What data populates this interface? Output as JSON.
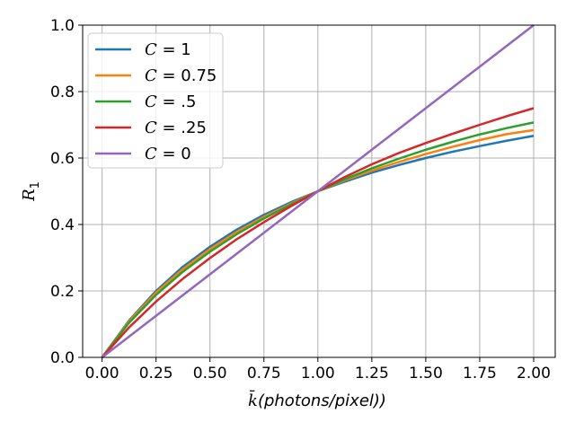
{
  "chart_data": {
    "type": "line",
    "title": "",
    "xlabel": "k̄(photons/pixel))",
    "ylabel": "R1",
    "xlim": [
      -0.09,
      2.1
    ],
    "ylim": [
      0.0,
      1.0
    ],
    "grid": true,
    "legend_position": "top-left",
    "x_ticks": [
      0.0,
      0.25,
      0.5,
      0.75,
      1.0,
      1.25,
      1.5,
      1.75,
      2.0
    ],
    "x_tick_labels": [
      "0.00",
      "0.25",
      "0.50",
      "0.75",
      "1.00",
      "1.25",
      "1.50",
      "1.75",
      "2.00"
    ],
    "y_ticks": [
      0.0,
      0.2,
      0.4,
      0.6,
      0.8,
      1.0
    ],
    "y_tick_labels": [
      "0.0",
      "0.2",
      "0.4",
      "0.6",
      "0.8",
      "1.0"
    ],
    "x": [
      0.0,
      0.125,
      0.25,
      0.375,
      0.5,
      0.625,
      0.75,
      0.875,
      1.0,
      1.125,
      1.25,
      1.375,
      1.5,
      1.625,
      1.75,
      1.875,
      2.0
    ],
    "series": [
      {
        "name": "C = 1",
        "label_var": "C",
        "label_val": "1",
        "color": "#1f77b4",
        "values": [
          0.0,
          0.111,
          0.2,
          0.273,
          0.333,
          0.385,
          0.429,
          0.467,
          0.5,
          0.529,
          0.556,
          0.579,
          0.6,
          0.619,
          0.636,
          0.652,
          0.667
        ]
      },
      {
        "name": "C = 0.75",
        "label_var": "C",
        "label_val": "0.75",
        "color": "#ff7f0e",
        "values": [
          0.0,
          0.108,
          0.195,
          0.266,
          0.326,
          0.378,
          0.423,
          0.463,
          0.5,
          0.533,
          0.562,
          0.588,
          0.612,
          0.634,
          0.654,
          0.672,
          0.684
        ]
      },
      {
        "name": "C = .5",
        "label_var": "C",
        "label_val": ".5",
        "color": "#2ca02c",
        "values": [
          0.0,
          0.104,
          0.188,
          0.258,
          0.318,
          0.371,
          0.418,
          0.46,
          0.5,
          0.536,
          0.569,
          0.598,
          0.625,
          0.649,
          0.671,
          0.69,
          0.707
        ]
      },
      {
        "name": "C = .25",
        "label_var": "C",
        "label_val": ".25",
        "color": "#d62728",
        "values": [
          0.0,
          0.09,
          0.168,
          0.237,
          0.299,
          0.356,
          0.407,
          0.455,
          0.5,
          0.543,
          0.581,
          0.615,
          0.645,
          0.673,
          0.7,
          0.726,
          0.75
        ]
      },
      {
        "name": "C = 0",
        "label_var": "C",
        "label_val": "0",
        "color": "#9467bd",
        "values": [
          0.0,
          0.0625,
          0.125,
          0.1875,
          0.25,
          0.3125,
          0.375,
          0.4375,
          0.5,
          0.5625,
          0.625,
          0.6875,
          0.75,
          0.8125,
          0.875,
          0.9375,
          1.0
        ]
      }
    ]
  }
}
